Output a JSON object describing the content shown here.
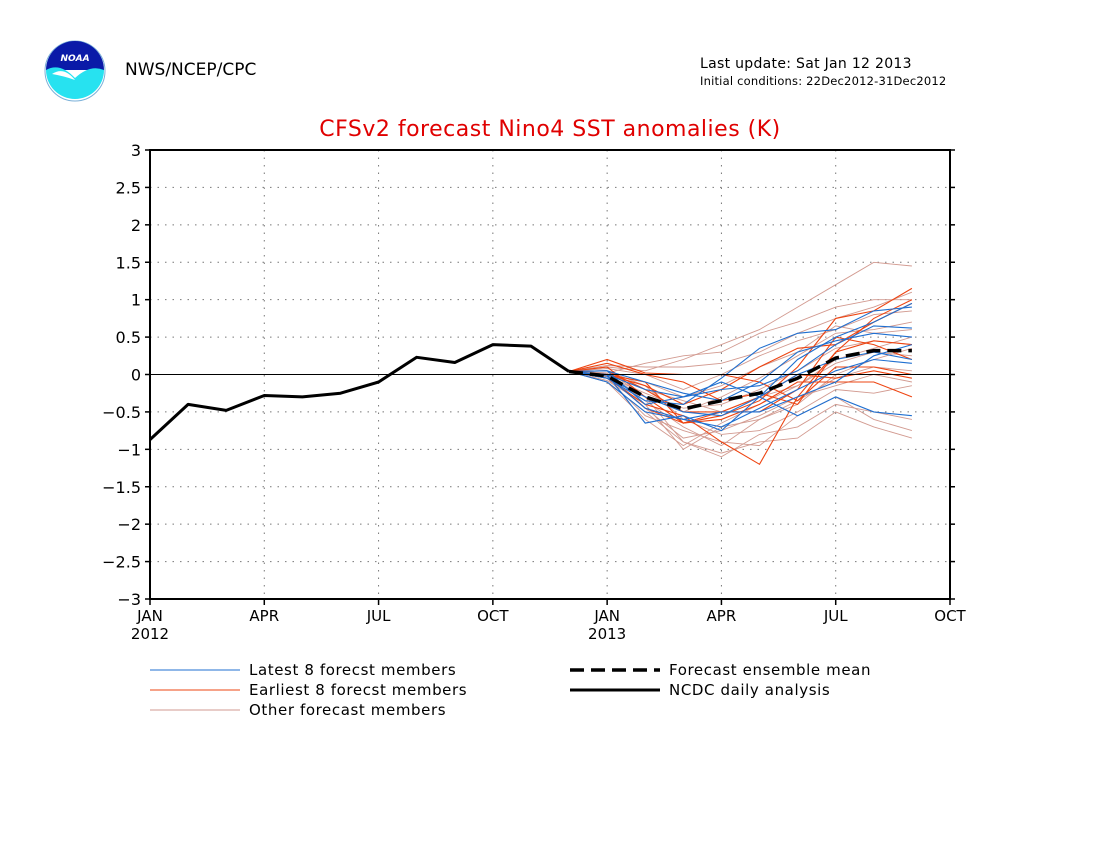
{
  "header": {
    "org": "NWS/NCEP/CPC",
    "logo_text": "NOAA",
    "last_update": "Last update: Sat Jan 12 2013",
    "initial_conditions": "Initial conditions: 22Dec2012-31Dec2012"
  },
  "colors": {
    "title": "#e00000",
    "latest": "#1f6fd0",
    "earliest": "#ee4411",
    "other": "#d29a90",
    "axis": "#000000"
  },
  "chart_data": {
    "type": "line",
    "title": "CFSv2 forecast Nino4 SST anomalies (K)",
    "ylim": [
      -3,
      3
    ],
    "yticks": [
      "3",
      "2.5",
      "2",
      "1.5",
      "1",
      "0.5",
      "0",
      "-0.5",
      "-1",
      "-1.5",
      "-2",
      "-2.5",
      "-3"
    ],
    "xlim": [
      0,
      21
    ],
    "xticks": [
      {
        "x": 0,
        "label": "JAN",
        "year": "2012"
      },
      {
        "x": 3,
        "label": "APR",
        "year": ""
      },
      {
        "x": 6,
        "label": "JUL",
        "year": ""
      },
      {
        "x": 9,
        "label": "OCT",
        "year": ""
      },
      {
        "x": 12,
        "label": "JAN",
        "year": "2013"
      },
      {
        "x": 15,
        "label": "APR",
        "year": ""
      },
      {
        "x": 18,
        "label": "JUL",
        "year": ""
      },
      {
        "x": 21,
        "label": "OCT",
        "year": ""
      }
    ],
    "grid": true,
    "legend": [
      {
        "label": "Latest 8 forecst members",
        "style": "thin-blue"
      },
      {
        "label": "Earliest 8 forecst members",
        "style": "thin-orange"
      },
      {
        "label": "Other forecast members",
        "style": "thin-pink"
      },
      {
        "label": "Forecast ensemble mean",
        "style": "thick-dashed"
      },
      {
        "label": "NCDC daily analysis",
        "style": "thick-solid"
      }
    ],
    "analysis": {
      "name": "NCDC daily analysis",
      "x": [
        0,
        1,
        2,
        3,
        4,
        5,
        6,
        7,
        8,
        9,
        10,
        11
      ],
      "y": [
        -0.87,
        -0.4,
        -0.48,
        -0.28,
        -0.3,
        -0.25,
        -0.1,
        0.23,
        0.16,
        0.4,
        0.38,
        0.04
      ]
    },
    "ensemble_mean": {
      "name": "Forecast ensemble mean",
      "x": [
        11,
        12,
        13,
        14,
        15,
        16,
        17,
        18,
        19,
        20
      ],
      "y": [
        0.04,
        -0.02,
        -0.3,
        -0.46,
        -0.35,
        -0.25,
        -0.05,
        0.22,
        0.32,
        0.32
      ]
    },
    "members_x": [
      11,
      12,
      13,
      14,
      15,
      16,
      17,
      18,
      19,
      20
    ],
    "latest_members": [
      [
        0.04,
        0.0,
        -0.65,
        -0.55,
        -0.75,
        -0.3,
        0.2,
        0.5,
        0.7,
        0.95
      ],
      [
        0.04,
        -0.05,
        -0.35,
        -0.4,
        -0.05,
        0.35,
        0.55,
        0.6,
        0.85,
        0.9
      ],
      [
        0.04,
        0.05,
        -0.4,
        -0.3,
        -0.2,
        -0.15,
        0.05,
        0.4,
        0.65,
        0.62
      ],
      [
        0.04,
        -0.1,
        -0.5,
        -0.6,
        -0.5,
        -0.5,
        -0.3,
        -0.1,
        0.25,
        0.4
      ],
      [
        0.04,
        0.0,
        -0.2,
        -0.3,
        -0.1,
        -0.3,
        -0.55,
        -0.3,
        -0.5,
        -0.55
      ],
      [
        0.04,
        -0.05,
        -0.3,
        -0.5,
        -0.55,
        -0.3,
        0.0,
        0.2,
        0.3,
        0.2
      ],
      [
        0.04,
        0.05,
        -0.1,
        -0.25,
        -0.35,
        -0.1,
        0.3,
        0.45,
        0.55,
        0.5
      ],
      [
        0.04,
        -0.02,
        -0.45,
        -0.6,
        -0.7,
        -0.45,
        -0.2,
        0.05,
        0.2,
        0.15
      ]
    ],
    "earliest_members": [
      [
        0.04,
        0.15,
        0.0,
        -0.1,
        -0.35,
        -0.25,
        -0.4,
        0.3,
        0.75,
        1.0
      ],
      [
        0.04,
        0.0,
        -0.1,
        -0.65,
        -0.55,
        -0.35,
        0.1,
        0.75,
        0.85,
        1.15
      ],
      [
        0.04,
        0.2,
        0.02,
        0.0,
        0.0,
        -0.1,
        -0.35,
        0.1,
        0.1,
        0.0
      ],
      [
        0.04,
        -0.05,
        -0.4,
        -0.55,
        -0.9,
        -1.2,
        -0.3,
        0.3,
        0.45,
        0.4
      ],
      [
        0.04,
        0.1,
        -0.3,
        -0.65,
        -0.6,
        -0.4,
        -0.1,
        -0.1,
        -0.1,
        -0.3
      ],
      [
        0.04,
        -0.02,
        -0.45,
        -0.65,
        -0.5,
        -0.5,
        -0.2,
        0.5,
        0.4,
        0.2
      ],
      [
        0.04,
        0.05,
        -0.2,
        -0.5,
        -0.5,
        -0.3,
        0.0,
        -0.05,
        0.05,
        -0.05
      ],
      [
        0.04,
        0.0,
        -0.15,
        -0.4,
        -0.2,
        0.1,
        0.35,
        0.4,
        0.7,
        0.95
      ]
    ],
    "other_members": [
      [
        0.04,
        0.1,
        0.05,
        0.2,
        0.4,
        0.6,
        0.9,
        1.2,
        1.5,
        1.45
      ],
      [
        0.04,
        -0.1,
        -0.5,
        -0.9,
        -1.1,
        -0.8,
        -0.7,
        -0.4,
        -0.5,
        -0.6
      ],
      [
        0.04,
        0.05,
        -0.3,
        -0.9,
        -1.05,
        -0.9,
        -0.85,
        -0.5,
        -0.7,
        -0.85
      ],
      [
        0.04,
        -0.05,
        -0.55,
        -0.75,
        -0.9,
        -0.95,
        -0.55,
        -0.3,
        -0.6,
        -0.75
      ],
      [
        0.04,
        0.02,
        0.15,
        0.25,
        0.3,
        0.55,
        0.7,
        0.9,
        1.0,
        1.0
      ],
      [
        0.04,
        -0.08,
        -0.4,
        -1.0,
        -0.7,
        -0.6,
        -0.4,
        0.0,
        0.2,
        0.35
      ],
      [
        0.04,
        0.0,
        -0.2,
        -0.35,
        -0.5,
        -0.3,
        -0.15,
        0.2,
        0.35,
        0.5
      ],
      [
        0.04,
        0.12,
        0.1,
        0.1,
        0.15,
        0.3,
        0.55,
        0.75,
        0.9,
        1.1
      ],
      [
        0.04,
        -0.02,
        -0.3,
        -0.5,
        -0.3,
        -0.05,
        0.25,
        0.55,
        0.6,
        0.7
      ],
      [
        0.04,
        0.05,
        -0.15,
        -0.6,
        -0.8,
        -0.75,
        -0.5,
        -0.2,
        -0.25,
        -0.15
      ],
      [
        0.04,
        0.0,
        -0.35,
        -0.7,
        -0.95,
        -0.6,
        -0.35,
        -0.05,
        0.1,
        0.05
      ],
      [
        0.04,
        -0.1,
        -0.6,
        -0.95,
        -0.65,
        -0.4,
        -0.15,
        0.15,
        0.3,
        0.25
      ],
      [
        0.04,
        0.08,
        0.0,
        -0.2,
        0.0,
        0.25,
        0.45,
        0.6,
        0.8,
        0.85
      ],
      [
        0.04,
        -0.03,
        -0.25,
        -0.45,
        -0.4,
        -0.2,
        0.05,
        0.35,
        0.45,
        0.4
      ],
      [
        0.04,
        0.02,
        -0.45,
        -0.85,
        -0.75,
        -0.55,
        -0.3,
        -0.15,
        0.0,
        -0.1
      ],
      [
        0.04,
        0.0,
        -0.1,
        -0.3,
        -0.15,
        0.1,
        0.3,
        0.65,
        0.55,
        0.6
      ]
    ]
  }
}
